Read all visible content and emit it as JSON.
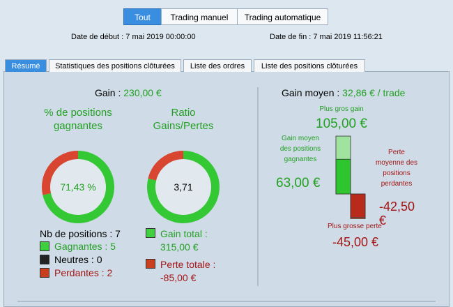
{
  "filters": [
    "Tout",
    "Trading manuel",
    "Trading automatique"
  ],
  "dates": {
    "start": "Date de début : 7 mai 2019 00:00:00",
    "end": "Date de fin : 7 mai 2019 11:56:21"
  },
  "tabs": [
    "Résumé",
    "Statistiques des positions clôturées",
    "Liste des ordres",
    "Liste des positions clôturées"
  ],
  "gain": {
    "label": "Gain :",
    "value": "230,00 €"
  },
  "win_ratio": {
    "title": "% de positions gagnantes",
    "value": 71.43,
    "value_label": "71,43 %"
  },
  "gain_loss_ratio": {
    "title": "Ratio Gains/Pertes",
    "value": "3,71"
  },
  "positions": {
    "total": "Nb de positions : 7",
    "winners": "Gagnantes : 5",
    "neutral": "Neutres : 0",
    "losers": "Perdantes : 2"
  },
  "totals": {
    "gain": {
      "label": "Gain total :",
      "value": 315,
      "value_label": "315,00 €"
    },
    "loss": {
      "label": "Perte totale :",
      "value": -85,
      "value_label": "-85,00 €"
    }
  },
  "average_gain": {
    "label": "Gain moyen :",
    "value": "32,86 € / trade"
  },
  "extremes": {
    "best_gain": {
      "label": "Plus gros gain",
      "value": 105,
      "value_label": "105,00 €"
    },
    "avg_gain": {
      "label": "Gain moyen des positions gagnantes",
      "value": 63,
      "value_label": "63,00 €"
    },
    "avg_loss": {
      "label": "Perte moyenne des positions perdantes",
      "value": -42.5,
      "value_label": "-42,50 €"
    },
    "worst_loss": {
      "label": "Plus grosse perte",
      "value": -45,
      "value_label": "-45,00 €"
    }
  }
}
